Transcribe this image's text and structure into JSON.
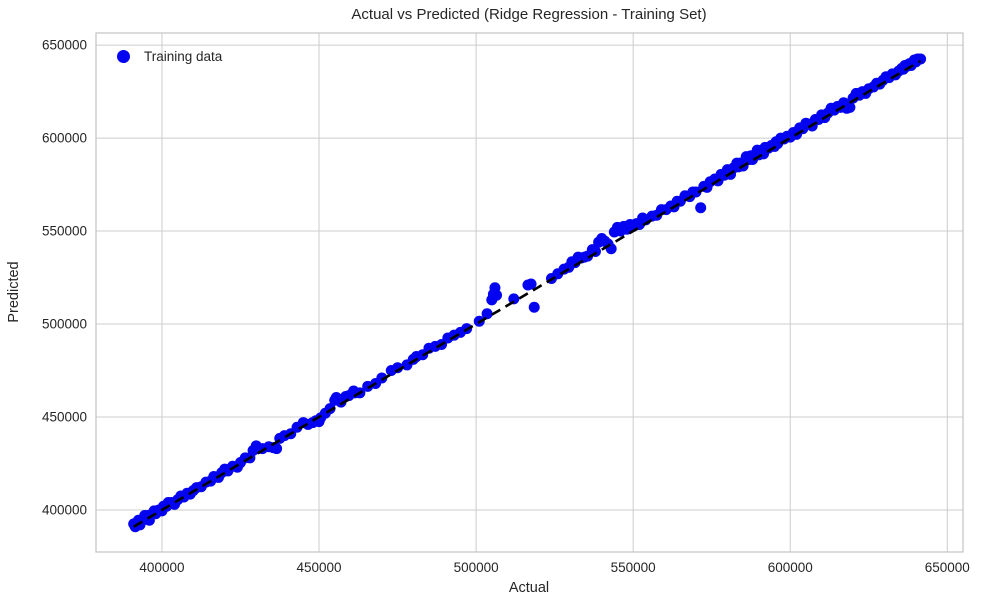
{
  "colors": {
    "scatter": "#0404f0",
    "line": "#000000",
    "grid": "#cccccc",
    "frame": "#c3c3c3",
    "text": "#262626",
    "background": "#ffffff"
  },
  "chart_data": {
    "type": "scatter",
    "title": "Actual vs Predicted (Ridge Regression - Training Set)",
    "xlabel": "Actual",
    "ylabel": "Predicted",
    "xlim": [
      379000,
      655000
    ],
    "ylim": [
      377400,
      656500
    ],
    "xticks": [
      400000,
      450000,
      500000,
      550000,
      600000,
      650000
    ],
    "yticks": [
      400000,
      450000,
      500000,
      550000,
      600000,
      650000
    ],
    "grid": true,
    "legend_position": "upper left",
    "series": [
      {
        "name": "Training data",
        "type": "scatter",
        "color": "#0404f0",
        "points": [
          [
            391000,
            392500
          ],
          [
            391500,
            391000
          ],
          [
            392000,
            392500
          ],
          [
            392500,
            394500
          ],
          [
            393000,
            392000
          ],
          [
            393500,
            394500
          ],
          [
            394500,
            397000
          ],
          [
            395000,
            395000
          ],
          [
            395500,
            397000
          ],
          [
            396000,
            394500
          ],
          [
            397000,
            398000
          ],
          [
            397500,
            399500
          ],
          [
            398000,
            398000
          ],
          [
            399000,
            400000
          ],
          [
            400000,
            399500
          ],
          [
            400500,
            402000
          ],
          [
            401500,
            402000
          ],
          [
            402000,
            404000
          ],
          [
            403000,
            404000
          ],
          [
            404000,
            403000
          ],
          [
            405000,
            405500
          ],
          [
            406000,
            407500
          ],
          [
            407000,
            407000
          ],
          [
            408000,
            409000
          ],
          [
            409000,
            408500
          ],
          [
            410000,
            410500
          ],
          [
            411000,
            412000
          ],
          [
            412500,
            412500
          ],
          [
            414000,
            415000
          ],
          [
            415500,
            415500
          ],
          [
            416500,
            418000
          ],
          [
            418000,
            417500
          ],
          [
            419000,
            420000
          ],
          [
            420000,
            422000
          ],
          [
            421000,
            421000
          ],
          [
            422500,
            423500
          ],
          [
            424000,
            423000
          ],
          [
            425000,
            425500
          ],
          [
            426500,
            428000
          ],
          [
            428000,
            428000
          ],
          [
            429000,
            432000
          ],
          [
            430000,
            434500
          ],
          [
            430500,
            433000
          ],
          [
            432000,
            433000
          ],
          [
            434000,
            434000
          ],
          [
            435500,
            433500
          ],
          [
            436500,
            433000
          ],
          [
            437500,
            438500
          ],
          [
            439000,
            440000
          ],
          [
            441000,
            441000
          ],
          [
            443000,
            444500
          ],
          [
            445000,
            447000
          ],
          [
            446500,
            446000
          ],
          [
            448000,
            447000
          ],
          [
            449000,
            448000
          ],
          [
            450000,
            447500
          ],
          [
            450500,
            449500
          ],
          [
            452000,
            452000
          ],
          [
            453500,
            454500
          ],
          [
            455000,
            459000
          ],
          [
            455500,
            460500
          ],
          [
            457000,
            458000
          ],
          [
            458500,
            461000
          ],
          [
            459500,
            461500
          ],
          [
            461000,
            464000
          ],
          [
            461500,
            463000
          ],
          [
            463000,
            463000
          ],
          [
            465500,
            466500
          ],
          [
            468000,
            468000
          ],
          [
            470000,
            471000
          ],
          [
            473000,
            475000
          ],
          [
            475000,
            476500
          ],
          [
            478000,
            478000
          ],
          [
            480000,
            481000
          ],
          [
            481000,
            482500
          ],
          [
            483000,
            483500
          ],
          [
            485000,
            487000
          ],
          [
            487000,
            488000
          ],
          [
            489000,
            489000
          ],
          [
            491000,
            492500
          ],
          [
            493000,
            494000
          ],
          [
            495000,
            495500
          ],
          [
            497000,
            497500
          ],
          [
            501000,
            501500
          ],
          [
            503500,
            505500
          ],
          [
            505000,
            513000
          ],
          [
            505500,
            516000
          ],
          [
            506000,
            519500
          ],
          [
            506500,
            515500
          ],
          [
            512000,
            513500
          ],
          [
            516500,
            521000
          ],
          [
            517500,
            521500
          ],
          [
            518500,
            509000
          ],
          [
            524000,
            524500
          ],
          [
            526000,
            527000
          ],
          [
            528000,
            529500
          ],
          [
            529500,
            530500
          ],
          [
            530500,
            533500
          ],
          [
            531500,
            533000
          ],
          [
            532500,
            536000
          ],
          [
            533500,
            535500
          ],
          [
            534500,
            536000
          ],
          [
            535500,
            536500
          ],
          [
            537000,
            540000
          ],
          [
            538000,
            539000
          ],
          [
            539000,
            544000
          ],
          [
            540000,
            546000
          ],
          [
            541000,
            544500
          ],
          [
            542000,
            543000
          ],
          [
            543000,
            540500
          ],
          [
            544000,
            549500
          ],
          [
            545000,
            552000
          ],
          [
            546000,
            550000
          ],
          [
            547000,
            552500
          ],
          [
            548000,
            551000
          ],
          [
            549000,
            553500
          ],
          [
            550000,
            552500
          ],
          [
            551000,
            554000
          ],
          [
            552000,
            553500
          ],
          [
            553000,
            557000
          ],
          [
            554000,
            556000
          ],
          [
            556000,
            558000
          ],
          [
            557500,
            558500
          ],
          [
            559000,
            561500
          ],
          [
            560500,
            561500
          ],
          [
            562000,
            563500
          ],
          [
            563000,
            563000
          ],
          [
            564000,
            566000
          ],
          [
            565000,
            566000
          ],
          [
            566500,
            569000
          ],
          [
            568000,
            568500
          ],
          [
            569000,
            571000
          ],
          [
            570000,
            571000
          ],
          [
            571500,
            562500
          ],
          [
            572500,
            574000
          ],
          [
            573500,
            573500
          ],
          [
            574500,
            576500
          ],
          [
            576000,
            578000
          ],
          [
            577000,
            577000
          ],
          [
            578000,
            580500
          ],
          [
            579000,
            580000
          ],
          [
            580000,
            583000
          ],
          [
            580500,
            582000
          ],
          [
            581000,
            580500
          ],
          [
            582000,
            584000
          ],
          [
            583000,
            586500
          ],
          [
            583500,
            584500
          ],
          [
            584000,
            586500
          ],
          [
            585000,
            585000
          ],
          [
            585500,
            587500
          ],
          [
            586000,
            590000
          ],
          [
            587000,
            588500
          ],
          [
            587500,
            590500
          ],
          [
            588000,
            588500
          ],
          [
            589000,
            591000
          ],
          [
            589500,
            593500
          ],
          [
            590000,
            591000
          ],
          [
            591000,
            593500
          ],
          [
            591500,
            591500
          ],
          [
            592000,
            595000
          ],
          [
            593000,
            594500
          ],
          [
            594000,
            596000
          ],
          [
            595000,
            595500
          ],
          [
            595500,
            598000
          ],
          [
            596000,
            597000
          ],
          [
            597000,
            600000
          ],
          [
            598000,
            599500
          ],
          [
            599000,
            601000
          ],
          [
            600000,
            600500
          ],
          [
            601000,
            603000
          ],
          [
            602000,
            602000
          ],
          [
            603000,
            605500
          ],
          [
            604000,
            605000
          ],
          [
            605000,
            608000
          ],
          [
            606000,
            607500
          ],
          [
            607000,
            606500
          ],
          [
            608000,
            610000
          ],
          [
            609000,
            610000
          ],
          [
            610000,
            612500
          ],
          [
            611000,
            611000
          ],
          [
            612000,
            613500
          ],
          [
            613000,
            616000
          ],
          [
            614000,
            615000
          ],
          [
            615000,
            617000
          ],
          [
            616000,
            616500
          ],
          [
            617000,
            619000
          ],
          [
            618000,
            616000
          ],
          [
            619000,
            616500
          ],
          [
            620000,
            621500
          ],
          [
            621000,
            624000
          ],
          [
            622000,
            623000
          ],
          [
            623000,
            625000
          ],
          [
            624000,
            624000
          ],
          [
            625000,
            626500
          ],
          [
            626500,
            627500
          ],
          [
            627500,
            629500
          ],
          [
            628500,
            629000
          ],
          [
            629500,
            631000
          ],
          [
            630500,
            633000
          ],
          [
            631500,
            632500
          ],
          [
            632500,
            634500
          ],
          [
            633500,
            634000
          ],
          [
            634500,
            636000
          ],
          [
            635500,
            637500
          ],
          [
            636000,
            637000
          ],
          [
            636500,
            639000
          ],
          [
            637000,
            638500
          ],
          [
            637500,
            639500
          ],
          [
            638000,
            640000
          ],
          [
            638500,
            639000
          ],
          [
            639000,
            640500
          ],
          [
            639500,
            642000
          ],
          [
            640000,
            641000
          ],
          [
            640500,
            642500
          ],
          [
            641000,
            642500
          ],
          [
            641500,
            642500
          ]
        ]
      },
      {
        "name": "perfect-fit-line",
        "type": "dashed_line",
        "color": "#000000",
        "x": [
          391000,
          641500
        ],
        "y": [
          391000,
          641500
        ]
      }
    ]
  }
}
